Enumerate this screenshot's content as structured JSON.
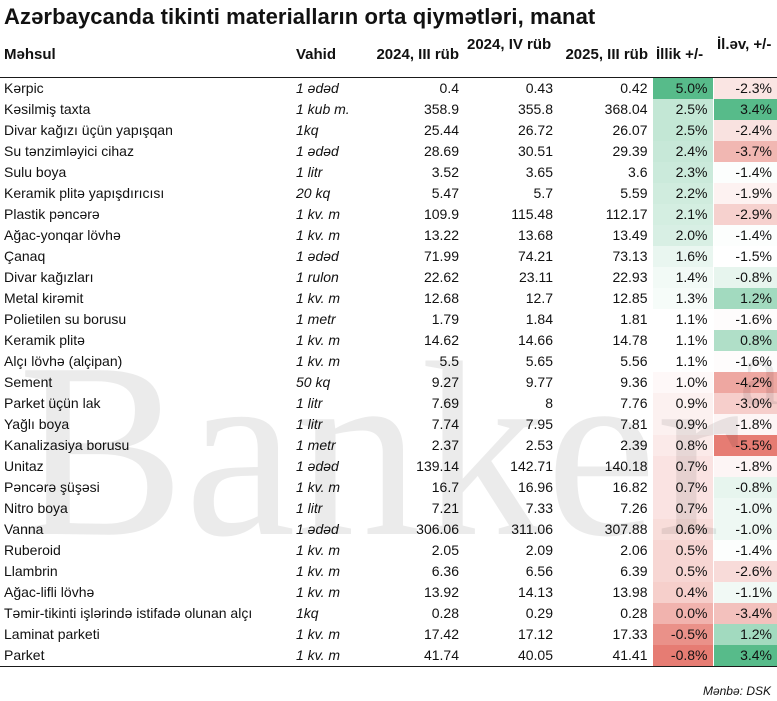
{
  "title": "Azərbaycanda tikinti materialların orta qiymətləri, manat",
  "columns": [
    "Məhsul",
    "Vahid",
    "2024, III rüb",
    "2024, IV rüb",
    "2025, III rüb",
    "İllik +/-",
    "İl.əv, +/-"
  ],
  "rows": [
    [
      "Kərpic",
      "1 ədəd",
      "0.4",
      "0.43",
      "0.42",
      "5.0%",
      "-2.3%"
    ],
    [
      "Kəsilmiş taxta",
      "1 kub m.",
      "358.9",
      "355.8",
      "368.04",
      "2.5%",
      "3.4%"
    ],
    [
      "Divar kağızı üçün yapışqan",
      "1kq",
      "25.44",
      "26.72",
      "26.07",
      "2.5%",
      "-2.4%"
    ],
    [
      "Su tənzimləyici cihaz",
      "1 ədəd",
      "28.69",
      "30.51",
      "29.39",
      "2.4%",
      "-3.7%"
    ],
    [
      "Sulu boya",
      "1 litr",
      "3.52",
      "3.65",
      "3.6",
      "2.3%",
      "-1.4%"
    ],
    [
      "Keramik plitə yapışdırıcısı",
      "20 kq",
      "5.47",
      "5.7",
      "5.59",
      "2.2%",
      "-1.9%"
    ],
    [
      "Plastik pəncərə",
      "1 kv. m",
      "109.9",
      "115.48",
      "112.17",
      "2.1%",
      "-2.9%"
    ],
    [
      "Ağac-yonqar lövhə",
      "1 kv. m",
      "13.22",
      "13.68",
      "13.49",
      "2.0%",
      "-1.4%"
    ],
    [
      "Çanaq",
      "1 ədəd",
      "71.99",
      "74.21",
      "73.13",
      "1.6%",
      "-1.5%"
    ],
    [
      "Divar kağızları",
      "1 rulon",
      "22.62",
      "23.11",
      "22.93",
      "1.4%",
      "-0.8%"
    ],
    [
      "Metal kirəmit",
      "1 kv. m",
      "12.68",
      "12.7",
      "12.85",
      "1.3%",
      "1.2%"
    ],
    [
      "Polietilen su borusu",
      "1 metr",
      "1.79",
      "1.84",
      "1.81",
      "1.1%",
      "-1.6%"
    ],
    [
      "Keramik plitə",
      "1 kv. m",
      "14.62",
      "14.66",
      "14.78",
      "1.1%",
      "0.8%"
    ],
    [
      "Alçı lövhə (alçipan)",
      "1 kv. m",
      "5.5",
      "5.65",
      "5.56",
      "1.1%",
      "-1.6%"
    ],
    [
      "Sement",
      "50 kq",
      "9.27",
      "9.77",
      "9.36",
      "1.0%",
      "-4.2%"
    ],
    [
      "Parket üçün lak",
      "1 litr",
      "7.69",
      "8",
      "7.76",
      "0.9%",
      "-3.0%"
    ],
    [
      "Yağlı boya",
      "1 litr",
      "7.74",
      "7.95",
      "7.81",
      "0.9%",
      "-1.8%"
    ],
    [
      "Kanalizasiya borusu",
      "1 metr",
      "2.37",
      "2.53",
      "2.39",
      "0.8%",
      "-5.5%"
    ],
    [
      "Unitaz",
      "1 ədəd",
      "139.14",
      "142.71",
      "140.18",
      "0.7%",
      "-1.8%"
    ],
    [
      "Pəncərə şüşəsi",
      "1 kv. m",
      "16.7",
      "16.96",
      "16.82",
      "0.7%",
      "-0.8%"
    ],
    [
      "Nitro boya",
      "1 litr",
      "7.21",
      "7.33",
      "7.26",
      "0.7%",
      "-1.0%"
    ],
    [
      "Vanna",
      "1 ədəd",
      "306.06",
      "311.06",
      "307.88",
      "0.6%",
      "-1.0%"
    ],
    [
      "Ruberoid",
      "1 kv. m",
      "2.05",
      "2.09",
      "2.06",
      "0.5%",
      "-1.4%"
    ],
    [
      "Llambrin",
      "1 kv. m",
      "6.36",
      "6.56",
      "6.39",
      "0.5%",
      "-2.6%"
    ],
    [
      "Ağac-lifli lövhə",
      "1 kv. m",
      "13.92",
      "14.13",
      "13.98",
      "0.4%",
      "-1.1%"
    ],
    [
      "Təmir-tikinti işlərində istifadə olunan alçı",
      "1kq",
      "0.28",
      "0.29",
      "0.28",
      "0.0%",
      "-3.4%"
    ],
    [
      "Laminat parketi",
      "1 kv. m",
      "17.42",
      "17.12",
      "17.33",
      "-0.5%",
      "1.2%"
    ],
    [
      "Parket",
      "1 kv. m",
      "41.74",
      "40.05",
      "41.41",
      "-0.8%",
      "3.4%"
    ]
  ],
  "colors": {
    "positive": "#57bb8a",
    "negative": "#e67c73",
    "neutral": "#ffffff"
  },
  "watermark": "Banker",
  "watermark_mark": "az",
  "source": "Mənbə: DSK"
}
